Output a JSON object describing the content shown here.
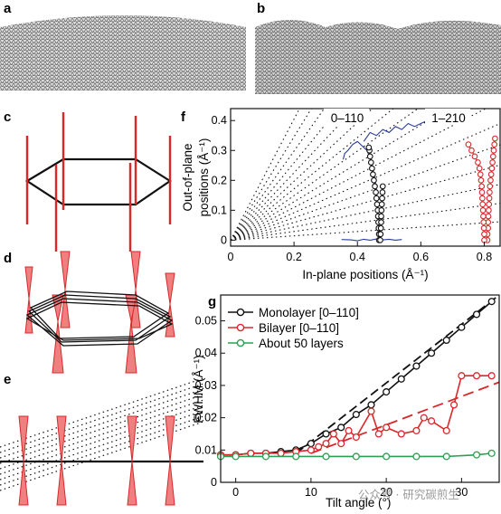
{
  "panel_labels": [
    "a",
    "b",
    "c",
    "d",
    "e",
    "f",
    "g"
  ],
  "watermark": "公众号 · 研究碳煎生",
  "colors": {
    "black": "#111111",
    "red": "#d8282a",
    "red_fill": "#f08080",
    "blue": "#2b3a9c",
    "green": "#2aa050"
  },
  "chart_data": [
    {
      "panel": "f",
      "type": "line",
      "xlabel": "In-plane positions (Å⁻¹)",
      "ylabel": "Out-of-plane positions (Å⁻¹)",
      "xlim": [
        0,
        0.85
      ],
      "ylim": [
        -0.02,
        0.44
      ],
      "xticks": [
        "0",
        "0.2",
        "0.4",
        "0.6",
        "0.8"
      ],
      "yticks": [
        "0",
        "0.1",
        "0.2",
        "0.3",
        "0.4"
      ],
      "annotations": [
        "0–110",
        "1–210"
      ],
      "grid": false,
      "series": [
        {
          "color": "blue",
          "x": [
            0.35,
            0.38,
            0.4,
            0.42,
            0.44,
            0.46,
            0.48,
            0.5,
            0.52,
            0.54
          ],
          "y": [
            0.002,
            0.001,
            -0.002,
            0.003,
            0.0,
            0.004,
            0.001,
            0.003,
            0.0,
            0.002
          ]
        },
        {
          "color": "blue",
          "x": [
            0.47,
            0.468,
            0.466,
            0.464,
            0.462,
            0.459,
            0.456,
            0.452,
            0.448,
            0.444,
            0.438,
            0.43,
            0.42,
            0.41,
            0.4,
            0.385,
            0.37,
            0.36,
            0.355
          ],
          "y": [
            0.02,
            0.05,
            0.08,
            0.11,
            0.14,
            0.17,
            0.2,
            0.22,
            0.24,
            0.26,
            0.28,
            0.3,
            0.31,
            0.32,
            0.33,
            0.32,
            0.3,
            0.29,
            0.27
          ]
        },
        {
          "color": "blue",
          "x": [
            0.42,
            0.44,
            0.46,
            0.48,
            0.5,
            0.52,
            0.54,
            0.56,
            0.58,
            0.6,
            0.62,
            0.64,
            0.66,
            0.68
          ],
          "y": [
            0.33,
            0.36,
            0.35,
            0.37,
            0.36,
            0.38,
            0.37,
            0.39,
            0.38,
            0.39,
            0.4,
            0.41,
            0.4,
            0.41
          ]
        },
        {
          "color": "black",
          "marker": "circle",
          "x": [
            0.468,
            0.468,
            0.467,
            0.466,
            0.465,
            0.464,
            0.462,
            0.46,
            0.458,
            0.455,
            0.452,
            0.449,
            0.446,
            0.443,
            0.44,
            0.438,
            0.436
          ],
          "y": [
            0.0,
            0.02,
            0.04,
            0.06,
            0.08,
            0.1,
            0.12,
            0.14,
            0.16,
            0.18,
            0.2,
            0.22,
            0.24,
            0.26,
            0.28,
            0.3,
            0.31
          ]
        },
        {
          "color": "black",
          "marker": "circle",
          "x": [
            0.472,
            0.473,
            0.474,
            0.475,
            0.475,
            0.476,
            0.477,
            0.478,
            0.479,
            0.48
          ],
          "y": [
            0.0,
            0.02,
            0.04,
            0.06,
            0.08,
            0.1,
            0.12,
            0.14,
            0.16,
            0.18
          ]
        },
        {
          "color": "red",
          "marker": "circle",
          "x": [
            0.81,
            0.81,
            0.812,
            0.812,
            0.813,
            0.814,
            0.815,
            0.816,
            0.817,
            0.818,
            0.82,
            0.822,
            0.824,
            0.826,
            0.828,
            0.83,
            0.832,
            0.834
          ],
          "y": [
            0.0,
            0.02,
            0.04,
            0.06,
            0.08,
            0.1,
            0.12,
            0.14,
            0.16,
            0.18,
            0.2,
            0.22,
            0.24,
            0.26,
            0.28,
            0.3,
            0.32,
            0.34
          ]
        },
        {
          "color": "red",
          "marker": "circle",
          "x": [
            0.8,
            0.8,
            0.799,
            0.798,
            0.797,
            0.796,
            0.795,
            0.794,
            0.793,
            0.792,
            0.79,
            0.788,
            0.785,
            0.78,
            0.77,
            0.76,
            0.75
          ],
          "y": [
            0.0,
            0.02,
            0.04,
            0.06,
            0.08,
            0.1,
            0.12,
            0.14,
            0.16,
            0.18,
            0.2,
            0.22,
            0.24,
            0.26,
            0.28,
            0.3,
            0.32
          ]
        }
      ]
    },
    {
      "panel": "g",
      "type": "line",
      "xlabel": "Tilt angle (°)",
      "ylabel": "FWHM (Å⁻¹)",
      "xlim": [
        -2,
        35
      ],
      "ylim": [
        0,
        0.058
      ],
      "xticks": [
        "0",
        "10",
        "20",
        "30"
      ],
      "yticks": [
        "0",
        "0.01",
        "0.02",
        "0.03",
        "0.04",
        "0.05"
      ],
      "legend": "top-left",
      "series": [
        {
          "name": "Monolayer [0–110]",
          "color": "black",
          "x": [
            -2,
            0,
            2,
            4,
            6,
            8,
            10,
            12,
            14,
            16,
            18,
            20,
            22,
            24,
            26,
            28,
            30,
            32,
            34
          ],
          "y": [
            0.0085,
            0.0085,
            0.009,
            0.009,
            0.0095,
            0.01,
            0.012,
            0.015,
            0.017,
            0.021,
            0.024,
            0.028,
            0.032,
            0.036,
            0.04,
            0.044,
            0.048,
            0.052,
            0.056
          ]
        },
        {
          "name": "Bilayer [0–110]",
          "color": "red",
          "x": [
            -2,
            0,
            2,
            4,
            6,
            8,
            10,
            11,
            12,
            13,
            14,
            15,
            16,
            18,
            19,
            20,
            22,
            24,
            25,
            26,
            28,
            29,
            30,
            32,
            34
          ],
          "y": [
            0.0085,
            0.0085,
            0.009,
            0.009,
            0.009,
            0.0095,
            0.01,
            0.011,
            0.012,
            0.015,
            0.012,
            0.016,
            0.014,
            0.022,
            0.015,
            0.017,
            0.015,
            0.016,
            0.02,
            0.019,
            0.016,
            0.024,
            0.033,
            0.033,
            0.033
          ]
        },
        {
          "name": "About 50 layers",
          "color": "green",
          "x": [
            -2,
            0,
            4,
            8,
            12,
            16,
            20,
            24,
            28,
            32,
            34
          ],
          "y": [
            0.008,
            0.008,
            0.008,
            0.008,
            0.008,
            0.008,
            0.008,
            0.008,
            0.008,
            0.0085,
            0.009
          ]
        }
      ]
    }
  ]
}
